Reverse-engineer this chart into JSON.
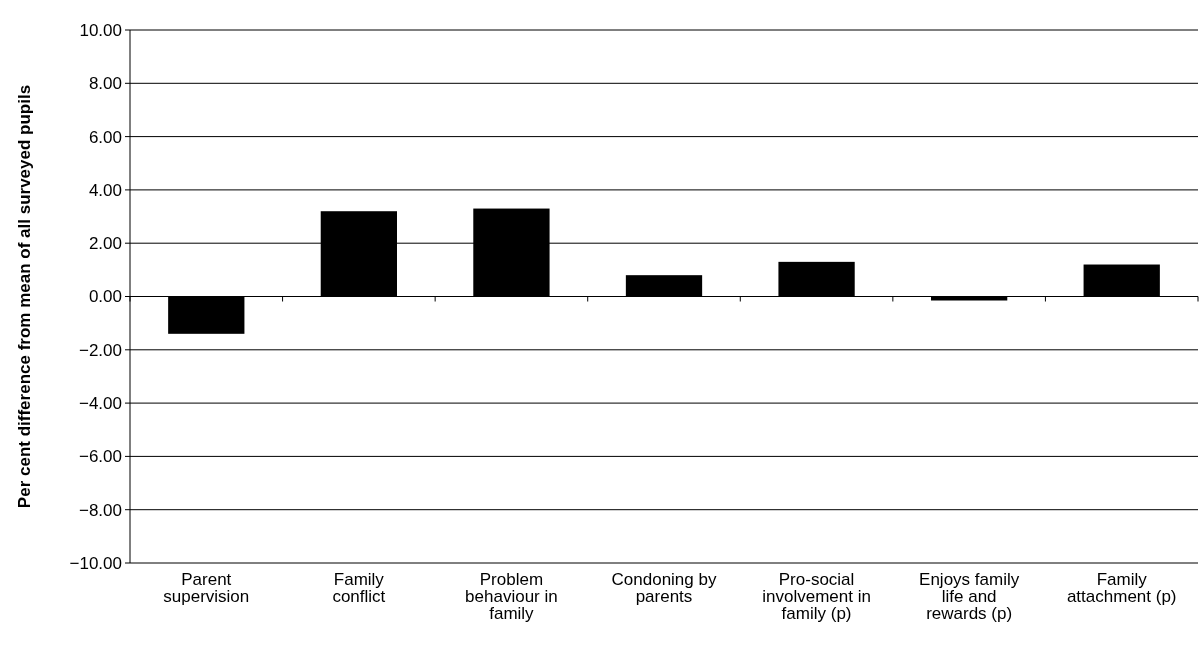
{
  "chart_data": {
    "type": "bar",
    "ylabel": "Per cent difference from mean of all surveyed pupils",
    "categories": [
      "Parent supervision",
      "Family conflict",
      "Problem behaviour in family",
      "Condoning by parents",
      "Pro-social involvement in family (p)",
      "Enjoys family life and rewards (p)",
      "Family attachment (p)"
    ],
    "values": [
      -1.4,
      3.2,
      3.3,
      0.8,
      1.3,
      -0.15,
      1.2
    ],
    "color": "#000000",
    "ylim": [
      -10,
      10
    ],
    "yticks": [
      {
        "value": -10,
        "label": "−10.00"
      },
      {
        "value": -8,
        "label": "−8.00"
      },
      {
        "value": -6,
        "label": "−6.00"
      },
      {
        "value": -4,
        "label": "−4.00"
      },
      {
        "value": -2,
        "label": "−2.00"
      },
      {
        "value": 0,
        "label": "0.00"
      },
      {
        "value": 2,
        "label": "2.00"
      },
      {
        "value": 4,
        "label": "4.00"
      },
      {
        "value": 6,
        "label": "6.00"
      },
      {
        "value": 8,
        "label": "8.00"
      },
      {
        "value": 10,
        "label": "10.00"
      }
    ],
    "grid": "y"
  }
}
